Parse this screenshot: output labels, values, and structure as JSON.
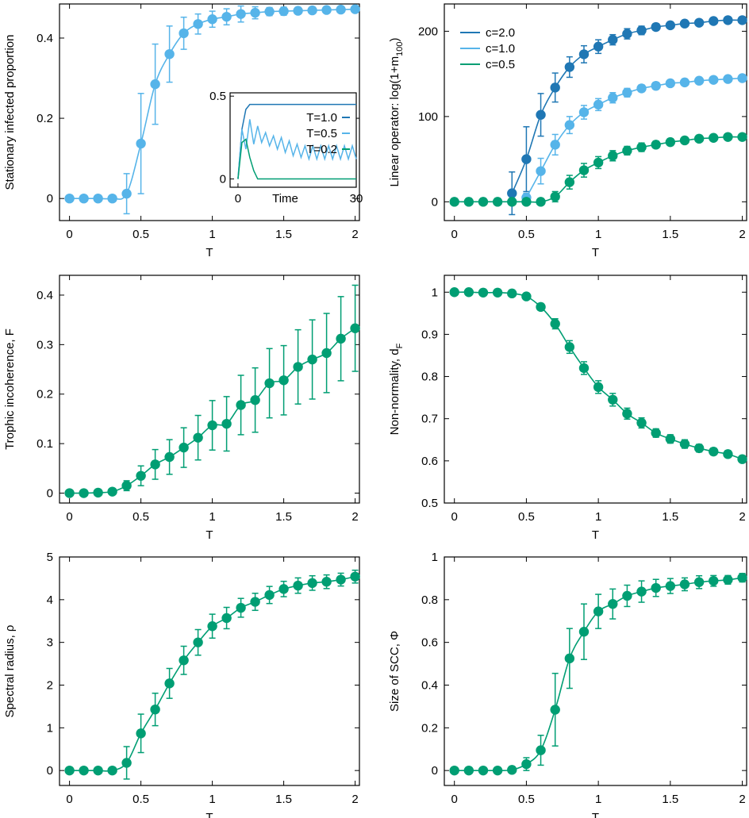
{
  "colors": {
    "dark": "#1f77b4",
    "light": "#56b4e9",
    "green": "#009e73",
    "frame": "#000000"
  },
  "chart_data": [
    {
      "type": "line",
      "panel": "top-left",
      "xlabel": "T",
      "ylabel": "Stationary infected proportion",
      "xlim": [
        -0.07,
        2.03
      ],
      "ylim": [
        -0.055,
        0.485
      ],
      "xticks": [
        0,
        0.5,
        1,
        1.5,
        2
      ],
      "xticklabels": [
        "0",
        "0.5",
        "1",
        "1.5",
        "2"
      ],
      "yticks": [
        0,
        0.2,
        0.4
      ],
      "yticklabels": [
        "0",
        "0.2",
        "0.4"
      ],
      "series": [
        {
          "name": "",
          "color": "light",
          "x": [
            0,
            0.1,
            0.2,
            0.3,
            0.4,
            0.5,
            0.6,
            0.7,
            0.8,
            0.9,
            1.0,
            1.1,
            1.2,
            1.3,
            1.4,
            1.5,
            1.6,
            1.7,
            1.8,
            1.9,
            2.0
          ],
          "y": [
            0,
            0,
            0,
            0,
            0.012,
            0.137,
            0.285,
            0.36,
            0.412,
            0.435,
            0.447,
            0.453,
            0.46,
            0.463,
            0.466,
            0.467,
            0.468,
            0.469,
            0.47,
            0.471,
            0.472
          ],
          "err": [
            0,
            0,
            0,
            0,
            0.05,
            0.125,
            0.1,
            0.07,
            0.04,
            0.025,
            0.02,
            0.02,
            0.02,
            0.015,
            0.01,
            0.01,
            0.008,
            0.008,
            0.006,
            0.005,
            0.005
          ]
        }
      ],
      "inset": {
        "xlabel": "Time",
        "xlim": [
          -2,
          30
        ],
        "ylim": [
          -0.05,
          0.52
        ],
        "xticks": [
          0,
          30
        ],
        "xticklabels": [
          "0",
          "30"
        ],
        "yticks": [
          0,
          0.5
        ],
        "yticklabels": [
          "0",
          "0.5"
        ],
        "legend": "top-right",
        "series": [
          {
            "name": "T=1.0",
            "color": "dark",
            "x": [
              0,
              1,
              2,
              3,
              30
            ],
            "y": [
              0,
              0.3,
              0.42,
              0.45,
              0.45
            ]
          },
          {
            "name": "T=0.5",
            "color": "light",
            "x": [
              0,
              1,
              2,
              3,
              4,
              5,
              6,
              7,
              8,
              9,
              10,
              11,
              12,
              13,
              14,
              15,
              16,
              17,
              18,
              19,
              20,
              21,
              22,
              23,
              24,
              25,
              26,
              27,
              28,
              29,
              30
            ],
            "y": [
              0,
              0.3,
              0.18,
              0.36,
              0.21,
              0.32,
              0.22,
              0.28,
              0.2,
              0.26,
              0.18,
              0.25,
              0.16,
              0.23,
              0.14,
              0.21,
              0.13,
              0.2,
              0.12,
              0.2,
              0.12,
              0.2,
              0.12,
              0.2,
              0.12,
              0.2,
              0.12,
              0.2,
              0.12,
              0.2,
              0.12
            ]
          },
          {
            "name": "T=0.2",
            "color": "green",
            "x": [
              0,
              1,
              2,
              3,
              4,
              5,
              30
            ],
            "y": [
              0,
              0.22,
              0.24,
              0.13,
              0.05,
              0,
              0
            ]
          }
        ]
      }
    },
    {
      "type": "line",
      "panel": "top-right",
      "xlabel": "T",
      "ylabel": "Linear operator: log(1+m",
      "ylabel_sub": "100",
      "ylabel_close": ")",
      "xlim": [
        -0.07,
        2.03
      ],
      "ylim": [
        -22,
        232
      ],
      "xticks": [
        0,
        0.5,
        1,
        1.5,
        2
      ],
      "xticklabels": [
        "0",
        "0.5",
        "1",
        "1.5",
        "2"
      ],
      "yticks": [
        0,
        100,
        200
      ],
      "yticklabels": [
        "0",
        "100",
        "200"
      ],
      "legend": "top-left",
      "series": [
        {
          "name": "c=2.0",
          "color": "dark",
          "x": [
            0.4,
            0.5,
            0.6,
            0.7,
            0.8,
            0.9,
            1.0,
            1.1,
            1.2,
            1.3,
            1.4,
            1.5,
            1.6,
            1.7,
            1.8,
            1.9,
            2.0
          ],
          "y": [
            10,
            50,
            102,
            134,
            158,
            173,
            182,
            190,
            197,
            201,
            205,
            207,
            209,
            210,
            212,
            213,
            213
          ],
          "err": [
            25,
            38,
            25,
            17,
            12,
            10,
            8,
            6,
            6,
            5,
            4,
            3,
            3,
            3,
            2,
            2,
            2
          ]
        },
        {
          "name": "c=1.0",
          "color": "light",
          "x": [
            0.5,
            0.6,
            0.7,
            0.8,
            0.9,
            1.0,
            1.1,
            1.2,
            1.3,
            1.4,
            1.5,
            1.6,
            1.7,
            1.8,
            1.9,
            2.0
          ],
          "y": [
            5,
            36,
            67,
            90,
            105,
            114,
            122,
            128,
            133,
            136,
            139,
            140,
            142,
            143,
            144,
            145
          ],
          "err": [
            5,
            15,
            12,
            10,
            8,
            7,
            6,
            5,
            4,
            4,
            3,
            3,
            3,
            2,
            2,
            2
          ]
        },
        {
          "name": "c=0.5",
          "color": "green",
          "x": [
            0,
            0.1,
            0.2,
            0.3,
            0.4,
            0.5,
            0.6,
            0.7,
            0.8,
            0.9,
            1.0,
            1.1,
            1.2,
            1.3,
            1.4,
            1.5,
            1.6,
            1.7,
            1.8,
            1.9,
            2.0
          ],
          "y": [
            0,
            0,
            0,
            0,
            0,
            0,
            0,
            6,
            23,
            37,
            46,
            54,
            60,
            64,
            67,
            70,
            72,
            74,
            75,
            76,
            76
          ],
          "err": [
            0,
            0,
            0,
            0,
            0,
            0,
            0,
            6,
            8,
            8,
            7,
            6,
            5,
            5,
            4,
            4,
            3,
            3,
            3,
            2,
            2
          ]
        }
      ]
    },
    {
      "type": "line",
      "panel": "middle-left",
      "xlabel": "T",
      "ylabel": "Trophic incoherence, F",
      "xlim": [
        -0.07,
        2.03
      ],
      "ylim": [
        -0.02,
        0.44
      ],
      "xticks": [
        0,
        0.5,
        1,
        1.5,
        2
      ],
      "xticklabels": [
        "0",
        "0.5",
        "1",
        "1.5",
        "2"
      ],
      "yticks": [
        0,
        0.1,
        0.2,
        0.3,
        0.4
      ],
      "yticklabels": [
        "0",
        "0.1",
        "0.2",
        "0.3",
        "0.4"
      ],
      "series": [
        {
          "name": "",
          "color": "green",
          "x": [
            0,
            0.1,
            0.2,
            0.3,
            0.4,
            0.5,
            0.6,
            0.7,
            0.8,
            0.9,
            1.0,
            1.1,
            1.2,
            1.3,
            1.4,
            1.5,
            1.6,
            1.7,
            1.8,
            1.9,
            2.0
          ],
          "y": [
            0,
            0,
            0.001,
            0.003,
            0.015,
            0.035,
            0.058,
            0.073,
            0.092,
            0.112,
            0.137,
            0.14,
            0.178,
            0.188,
            0.222,
            0.228,
            0.255,
            0.27,
            0.283,
            0.312,
            0.333
          ],
          "err": [
            0,
            0,
            0,
            0.003,
            0.01,
            0.02,
            0.03,
            0.035,
            0.04,
            0.045,
            0.05,
            0.055,
            0.06,
            0.065,
            0.07,
            0.07,
            0.075,
            0.08,
            0.08,
            0.085,
            0.087
          ]
        }
      ]
    },
    {
      "type": "line",
      "panel": "middle-right",
      "xlabel": "T",
      "ylabel": "Non-normality, d",
      "ylabel_sub": "F",
      "xlim": [
        -0.07,
        2.03
      ],
      "ylim": [
        0.5,
        1.04
      ],
      "xticks": [
        0,
        0.5,
        1,
        1.5,
        2
      ],
      "xticklabels": [
        "0",
        "0.5",
        "1",
        "1.5",
        "2"
      ],
      "yticks": [
        0.5,
        0.6,
        0.7,
        0.8,
        0.9,
        1.0
      ],
      "yticklabels": [
        "0.5",
        "0.6",
        "0.7",
        "0.8",
        "0.9",
        "1"
      ],
      "series": [
        {
          "name": "",
          "color": "green",
          "x": [
            0,
            0.1,
            0.2,
            0.3,
            0.4,
            0.5,
            0.6,
            0.7,
            0.8,
            0.9,
            1.0,
            1.1,
            1.2,
            1.3,
            1.4,
            1.5,
            1.6,
            1.7,
            1.8,
            1.9,
            2.0
          ],
          "y": [
            1.0,
            1.0,
            0.999,
            0.999,
            0.997,
            0.99,
            0.965,
            0.925,
            0.87,
            0.82,
            0.775,
            0.745,
            0.712,
            0.69,
            0.666,
            0.652,
            0.64,
            0.63,
            0.622,
            0.616,
            0.604
          ],
          "err": [
            0,
            0,
            0,
            0,
            0.002,
            0.005,
            0.008,
            0.012,
            0.015,
            0.015,
            0.015,
            0.015,
            0.013,
            0.012,
            0.01,
            0.01,
            0.01,
            0.009,
            0.008,
            0.008,
            0.006
          ]
        }
      ]
    },
    {
      "type": "line",
      "panel": "bottom-left",
      "xlabel": "T",
      "ylabel": "Spectral radius, ρ",
      "xlim": [
        -0.07,
        2.03
      ],
      "ylim": [
        -0.35,
        5.0
      ],
      "xticks": [
        0,
        0.5,
        1,
        1.5,
        2
      ],
      "xticklabels": [
        "0",
        "0.5",
        "1",
        "1.5",
        "2"
      ],
      "yticks": [
        0,
        1,
        2,
        3,
        4,
        5
      ],
      "yticklabels": [
        "0",
        "1",
        "2",
        "3",
        "4",
        "5"
      ],
      "series": [
        {
          "name": "",
          "color": "green",
          "x": [
            0,
            0.1,
            0.2,
            0.3,
            0.4,
            0.5,
            0.6,
            0.7,
            0.8,
            0.9,
            1.0,
            1.1,
            1.2,
            1.3,
            1.4,
            1.5,
            1.6,
            1.7,
            1.8,
            1.9,
            2.0
          ],
          "y": [
            0,
            0,
            0,
            0,
            0.18,
            0.87,
            1.43,
            2.04,
            2.58,
            3.0,
            3.38,
            3.57,
            3.81,
            3.95,
            4.11,
            4.25,
            4.33,
            4.39,
            4.42,
            4.47,
            4.54
          ],
          "err": [
            0,
            0,
            0,
            0,
            0.38,
            0.45,
            0.38,
            0.35,
            0.33,
            0.3,
            0.28,
            0.25,
            0.22,
            0.2,
            0.2,
            0.18,
            0.18,
            0.17,
            0.16,
            0.15,
            0.15
          ]
        }
      ]
    },
    {
      "type": "line",
      "panel": "bottom-right",
      "xlabel": "T",
      "ylabel": "Size of SCC, Φ",
      "xlim": [
        -0.07,
        2.03
      ],
      "ylim": [
        -0.07,
        1.0
      ],
      "xticks": [
        0,
        0.5,
        1,
        1.5,
        2
      ],
      "xticklabels": [
        "0",
        "0.5",
        "1",
        "1.5",
        "2"
      ],
      "yticks": [
        0,
        0.2,
        0.4,
        0.6,
        0.8,
        1.0
      ],
      "yticklabels": [
        "0",
        "0.2",
        "0.4",
        "0.6",
        "0.8",
        "1"
      ],
      "series": [
        {
          "name": "",
          "color": "green",
          "x": [
            0,
            0.1,
            0.2,
            0.3,
            0.4,
            0.5,
            0.6,
            0.7,
            0.8,
            0.9,
            1.0,
            1.1,
            1.2,
            1.3,
            1.4,
            1.5,
            1.6,
            1.7,
            1.8,
            1.9,
            2.0
          ],
          "y": [
            0,
            0,
            0,
            0,
            0.003,
            0.03,
            0.095,
            0.285,
            0.525,
            0.65,
            0.745,
            0.78,
            0.818,
            0.838,
            0.855,
            0.864,
            0.872,
            0.882,
            0.888,
            0.893,
            0.903
          ],
          "err": [
            0,
            0,
            0,
            0,
            0.005,
            0.03,
            0.07,
            0.17,
            0.14,
            0.13,
            0.08,
            0.07,
            0.05,
            0.05,
            0.04,
            0.035,
            0.03,
            0.03,
            0.025,
            0.02,
            0.02
          ]
        }
      ]
    }
  ]
}
